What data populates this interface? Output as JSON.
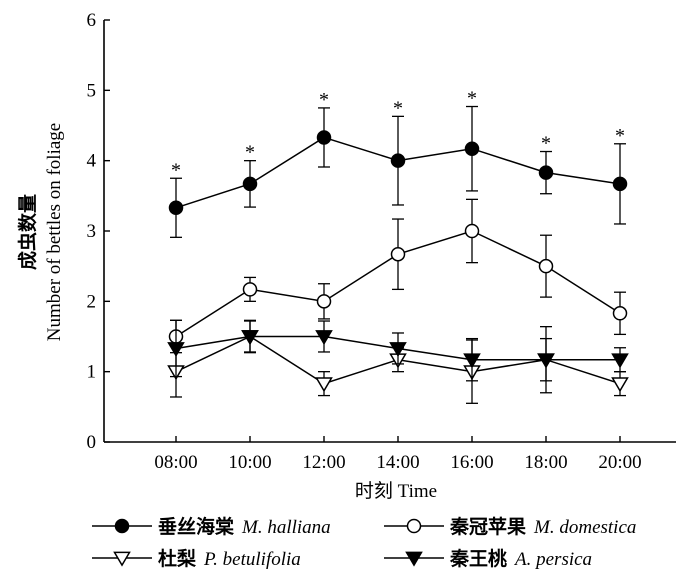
{
  "chart_data": {
    "type": "line",
    "xlabel": "时刻 Time",
    "ylabel_cn": "成虫数量",
    "ylabel_en": "Number of bettles on foliage",
    "ylim": [
      0,
      6
    ],
    "yticks": [
      "0",
      "1",
      "2",
      "3",
      "4",
      "5",
      "6"
    ],
    "categories": [
      "08:00",
      "10:00",
      "12:00",
      "14:00",
      "16:00",
      "18:00",
      "20:00"
    ],
    "series": [
      {
        "name_cn": "垂丝海棠",
        "name_sci": "M. halliana",
        "marker": "circle-filled",
        "values": [
          3.33,
          3.67,
          4.33,
          4.0,
          4.17,
          3.83,
          3.67
        ],
        "err_upper": [
          0.42,
          0.33,
          0.42,
          0.63,
          0.6,
          0.3,
          0.57
        ],
        "err_lower": [
          0.42,
          0.33,
          0.42,
          0.63,
          0.6,
          0.3,
          0.57
        ],
        "significance": [
          "*",
          "*",
          "*",
          "*",
          "*",
          "*",
          "*"
        ]
      },
      {
        "name_cn": "秦冠苹果",
        "name_sci": "M. domestica",
        "marker": "circle-open",
        "values": [
          1.5,
          2.17,
          2.0,
          2.67,
          3.0,
          2.5,
          1.83
        ],
        "err_upper": [
          0.23,
          0.17,
          0.25,
          0.5,
          0.45,
          0.44,
          0.3
        ],
        "err_lower": [
          0.23,
          0.17,
          0.25,
          0.5,
          0.45,
          0.44,
          0.3
        ]
      },
      {
        "name_cn": "杜梨",
        "name_sci": "P. betulifolia",
        "marker": "triangle-down-open",
        "values": [
          1.0,
          1.5,
          0.83,
          1.17,
          1.0,
          1.17,
          0.83
        ],
        "err_upper": [
          0.36,
          0.23,
          0.17,
          0.17,
          0.45,
          0.47,
          0.17
        ],
        "err_lower": [
          0.36,
          0.23,
          0.17,
          0.17,
          0.45,
          0.47,
          0.17
        ]
      },
      {
        "name_cn": "秦王桃",
        "name_sci": "A. persica",
        "marker": "triangle-down-filled",
        "values": [
          1.33,
          1.5,
          1.5,
          1.33,
          1.17,
          1.17,
          1.17
        ],
        "err_upper": [
          0.4,
          0.22,
          0.22,
          0.22,
          0.3,
          0.3,
          0.17
        ],
        "err_lower": [
          0.4,
          0.22,
          0.22,
          0.22,
          0.3,
          0.3,
          0.17
        ]
      }
    ],
    "legend_position": "bottom",
    "grid": false
  }
}
